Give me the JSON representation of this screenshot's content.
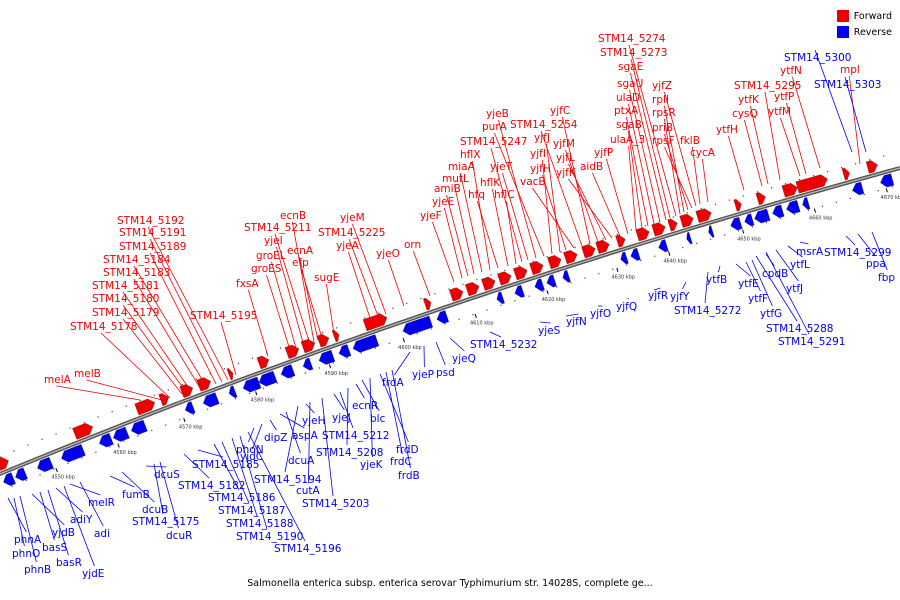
{
  "caption": "Salmonella enterica subsp. enterica serovar Typhimurium str. 14028S, complete ge...",
  "legend": [
    {
      "label": "Forward",
      "color": "#ee0000"
    },
    {
      "label": "Reverse",
      "color": "#0000ee"
    }
  ],
  "colors": {
    "forward": "#ee0000",
    "reverse": "#0000ee",
    "backbone": "#777777"
  },
  "ticks": [
    "4550 kbp",
    "4560 kbp",
    "4570 kbp",
    "4580 kbp",
    "4590 kbp",
    "4600 kbp",
    "4610 kbp",
    "4620 kbp",
    "4630 kbp",
    "4640 kbp",
    "4650 kbp",
    "4660 kbp",
    "4670 kbp"
  ],
  "forward_labels": [
    "melA",
    "melB",
    "STM14_5178",
    "STM14_5179",
    "STM14_5180",
    "STM14_5181",
    "STM14_5183",
    "STM14_5184",
    "STM14_5189",
    "STM14_5191",
    "STM14_5192",
    "STM14_5195",
    "fxsA",
    "groES",
    "groEL",
    "yjeI",
    "STM14_5211",
    "ecnB",
    "ecnA",
    "efp",
    "sugE",
    "yjeA",
    "STM14_5225",
    "yjeM",
    "yjeO",
    "orn",
    "yjeF",
    "yjeE",
    "amiB",
    "mutL",
    "miaA",
    "hflX",
    "hfq",
    "hflK",
    "hflC",
    "STM14_5247",
    "yjeT",
    "yjeB",
    "purA",
    "yjfI",
    "yjfJ",
    "yjfH",
    "vacB",
    "STM14_5254",
    "yjfC",
    "yjfM",
    "yjfL",
    "yjfK",
    "aidB",
    "yjfP",
    "ulaA_3",
    "sgaB",
    "ptxA",
    "ulaD",
    "sgaU",
    "sgaE",
    "STM14_5273",
    "STM14_5274",
    "rpsR",
    "rplI",
    "priB",
    "rpsF",
    "yjfZ",
    "fklB",
    "cycA",
    "ytfH",
    "cysQ",
    "ytfK",
    "STM14_5295",
    "ytfM",
    "ytfP",
    "ytfN",
    "mpl"
  ],
  "reverse_labels": [
    "phnA",
    "phnO",
    "phnB",
    "yjdB",
    "basS",
    "basR",
    "adiY",
    "yjdE",
    "melR",
    "adi",
    "fumB",
    "dcuB",
    "dcuS",
    "STM14_5175",
    "dcuR",
    "STM14_5182",
    "STM14_5185",
    "STM14_5186",
    "STM14_5187",
    "STM14_5188",
    "STM14_5190",
    "STM14_5196",
    "phoN",
    "yjdC",
    "dipZ",
    "aspA",
    "dcuA",
    "STM14_5194",
    "yjeH",
    "cutA",
    "STM14_5203",
    "yjeJ",
    "STM14_5212",
    "STM14_5208",
    "ecnR",
    "blc",
    "yjeK",
    "frdD",
    "frdC",
    "frdB",
    "frdA",
    "yjeP",
    "psd",
    "yjeQ",
    "STM14_5232",
    "yjeS",
    "yjfN",
    "yjfO",
    "yjfQ",
    "yjfR",
    "yjfY",
    "STM14_5272",
    "ytfB",
    "ytfE",
    "ytfF",
    "ytfG",
    "cpdB",
    "ytfJ",
    "ytfL",
    "msrA",
    "STM14_5288",
    "STM14_5291",
    "STM14_5299",
    "ppa",
    "fbp",
    "STM14_5300",
    "STM14_5303"
  ]
}
